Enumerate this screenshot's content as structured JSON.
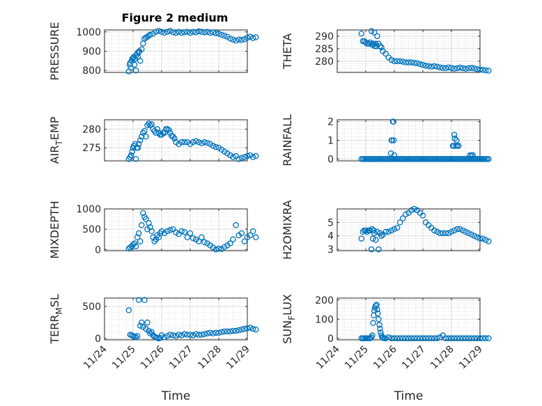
{
  "figure": {
    "title": "Figure 2 medium",
    "marker_color": "#0072BD",
    "axis_color": "#262626",
    "grid_color": "#dcdcdc",
    "date_ticks": [
      "11/24",
      "11/25",
      "11/26",
      "11/27",
      "11/28",
      "11/29"
    ],
    "xlabel": "Time"
  },
  "chart_data": [
    {
      "type": "scatter",
      "ylabel": "PRESSURE",
      "ylim": [
        790,
        1010
      ],
      "yticks": [
        800,
        900,
        1000
      ],
      "grid": true,
      "x": [
        0.85,
        0.88,
        0.9,
        0.92,
        0.95,
        0.97,
        1.0,
        1.02,
        1.05,
        1.07,
        1.1,
        1.12,
        1.15,
        1.17,
        1.2,
        1.22,
        1.25,
        1.3,
        1.35,
        1.4,
        1.45,
        1.5,
        1.55,
        1.6,
        1.7,
        1.8,
        1.9,
        2.0,
        2.1,
        2.2,
        2.3,
        2.4,
        2.5,
        2.6,
        2.7,
        2.8,
        2.9,
        3.0,
        3.1,
        3.2,
        3.3,
        3.4,
        3.5,
        3.6,
        3.7,
        3.8,
        3.9,
        4.0,
        4.1,
        4.2,
        4.3,
        4.4,
        4.5,
        4.6,
        4.7,
        4.8,
        4.9,
        5.0,
        5.1,
        5.2,
        5.3
      ],
      "y": [
        795,
        830,
        840,
        815,
        850,
        860,
        865,
        870,
        830,
        860,
        800,
        880,
        890,
        870,
        895,
        900,
        850,
        910,
        940,
        965,
        970,
        975,
        980,
        985,
        990,
        1000,
        1005,
        1000,
        995,
        1000,
        1005,
        998,
        995,
        1000,
        995,
        998,
        1000,
        995,
        1000,
        998,
        1003,
        1000,
        998,
        1000,
        995,
        998,
        993,
        990,
        985,
        980,
        975,
        965,
        960,
        955,
        960,
        958,
        962,
        970,
        975,
        968,
        972
      ]
    },
    {
      "type": "scatter",
      "ylabel": "THETA",
      "ylim": [
        275.5,
        292.5
      ],
      "yticks": [
        280,
        285,
        290
      ],
      "grid": true,
      "x": [
        0.85,
        0.9,
        0.95,
        1.0,
        1.05,
        1.1,
        1.15,
        1.2,
        1.22,
        1.25,
        1.28,
        1.3,
        1.32,
        1.35,
        1.38,
        1.4,
        1.45,
        1.5,
        1.55,
        1.6,
        1.7,
        1.8,
        1.9,
        2.0,
        2.1,
        2.2,
        2.3,
        2.4,
        2.5,
        2.6,
        2.7,
        2.8,
        2.9,
        3.0,
        3.1,
        3.2,
        3.3,
        3.4,
        3.5,
        3.6,
        3.7,
        3.8,
        3.9,
        4.0,
        4.1,
        4.2,
        4.3,
        4.4,
        4.5,
        4.6,
        4.7,
        4.8,
        4.9,
        5.0,
        5.1,
        5.2,
        5.3
      ],
      "y": [
        291,
        288,
        288,
        287.5,
        287,
        287,
        287.5,
        292,
        286.5,
        287,
        287,
        291.5,
        286,
        287,
        286,
        290,
        287,
        286,
        285.5,
        284,
        283,
        281.5,
        280.5,
        280,
        280,
        280,
        279.8,
        279.5,
        279.5,
        279.5,
        279.3,
        279.2,
        278.8,
        278.5,
        278.2,
        278,
        277.8,
        278,
        277.8,
        277.5,
        277.3,
        277.2,
        277.5,
        277.3,
        277,
        277.2,
        277.4,
        277.2,
        277,
        277.2,
        277.3,
        277.1,
        276.8,
        276.6,
        276.5,
        276.3,
        276.2
      ]
    },
    {
      "type": "scatter",
      "ylabel": "AIR_TEMP",
      "ylim": [
        271.5,
        282.5
      ],
      "yticks": [
        275,
        280
      ],
      "grid": true,
      "x": [
        0.85,
        0.9,
        0.93,
        0.97,
        1.0,
        1.03,
        1.07,
        1.1,
        1.13,
        1.17,
        1.2,
        1.25,
        1.3,
        1.35,
        1.4,
        1.45,
        1.5,
        1.55,
        1.6,
        1.65,
        1.7,
        1.75,
        1.8,
        1.85,
        1.9,
        1.95,
        2.0,
        2.05,
        2.1,
        2.15,
        2.2,
        2.25,
        2.3,
        2.35,
        2.4,
        2.45,
        2.5,
        2.6,
        2.7,
        2.8,
        2.9,
        3.0,
        3.1,
        3.2,
        3.3,
        3.4,
        3.5,
        3.6,
        3.7,
        3.8,
        3.9,
        4.0,
        4.1,
        4.2,
        4.3,
        4.4,
        4.5,
        4.6,
        4.7,
        4.8,
        4.9,
        5.0,
        5.1,
        5.2,
        5.3
      ],
      "y": [
        272,
        272.5,
        273,
        274,
        275,
        275.5,
        276,
        272,
        275,
        275,
        276,
        277,
        278,
        279,
        279.5,
        278,
        281,
        281.5,
        281,
        281.3,
        280,
        279.5,
        279,
        280,
        279,
        278.5,
        278.5,
        279,
        279,
        280,
        280,
        279.8,
        279,
        278.2,
        278,
        277.5,
        276.5,
        276,
        276.5,
        276.5,
        276.5,
        276,
        276.5,
        276.8,
        276.5,
        276.2,
        276.5,
        276.3,
        276,
        275.5,
        275.2,
        275,
        274.5,
        274,
        273.5,
        273,
        272.5,
        272.8,
        272,
        272.3,
        272.5,
        272.8,
        273,
        272.5,
        272.8
      ]
    },
    {
      "type": "scatter",
      "ylabel": "RAINFALL",
      "ylim": [
        -0.1,
        2.1
      ],
      "yticks": [
        0,
        1,
        2
      ],
      "grid": true,
      "x": [
        0.85,
        0.9,
        0.95,
        1.0,
        1.05,
        1.1,
        1.15,
        1.2,
        1.25,
        1.3,
        1.35,
        1.4,
        1.45,
        1.5,
        1.55,
        1.6,
        1.65,
        1.7,
        1.75,
        1.8,
        1.85,
        1.9,
        1.95,
        2.0,
        2.05,
        2.1,
        2.15,
        2.2,
        2.25,
        2.3,
        2.35,
        2.4,
        2.45,
        2.5,
        2.55,
        2.6,
        2.65,
        2.7,
        2.75,
        2.8,
        2.85,
        2.9,
        2.95,
        3.0,
        3.05,
        3.1,
        3.15,
        3.2,
        3.25,
        3.3,
        3.35,
        3.4,
        3.45,
        3.5,
        3.55,
        3.6,
        3.65,
        3.7,
        3.75,
        3.8,
        3.85,
        3.9,
        3.95,
        4.0,
        4.05,
        4.1,
        4.15,
        4.2,
        4.25,
        4.3,
        4.35,
        4.4,
        4.45,
        4.5,
        4.55,
        4.6,
        4.65,
        4.7,
        4.75,
        4.8,
        4.85,
        4.9,
        4.95,
        5.0,
        5.05,
        5.1,
        5.15,
        5.2,
        5.25,
        5.3,
        1.88,
        1.9,
        1.92,
        1.95,
        1.97,
        1.98,
        2.0,
        4.05,
        4.08,
        4.1,
        4.12,
        4.15,
        4.18,
        4.2,
        4.25,
        4.65,
        4.7,
        4.75
      ],
      "y": [
        0,
        0,
        0,
        0,
        0,
        0,
        0,
        0,
        0,
        0,
        0,
        0,
        0,
        0,
        0,
        0,
        0,
        0,
        0,
        0,
        0,
        0,
        0,
        0,
        0,
        0,
        0,
        0,
        0,
        0,
        0,
        0,
        0,
        0,
        0,
        0,
        0,
        0,
        0,
        0,
        0,
        0,
        0,
        0,
        0,
        0,
        0,
        0,
        0,
        0,
        0,
        0,
        0,
        0,
        0,
        0,
        0,
        0,
        0,
        0,
        0,
        0,
        0,
        0,
        0,
        0,
        0,
        0,
        0,
        0,
        0,
        0,
        0,
        0,
        0,
        0,
        0,
        0,
        0,
        0,
        0,
        0,
        0,
        0,
        0,
        0,
        0,
        0,
        0,
        0,
        0.3,
        1.0,
        1.0,
        2.0,
        2.0,
        1.0,
        0.2,
        0.7,
        0.7,
        1.3,
        1.1,
        0.7,
        1.0,
        0.7,
        0.7,
        0.2,
        0.2,
        0.2
      ]
    },
    {
      "type": "scatter",
      "ylabel": "MIXDEPTH",
      "ylim": [
        -30,
        1000
      ],
      "yticks": [
        0,
        500,
        1000
      ],
      "grid": true,
      "x": [
        0.85,
        0.9,
        0.95,
        1.0,
        1.05,
        1.1,
        1.15,
        1.2,
        1.25,
        1.3,
        1.35,
        1.4,
        1.45,
        1.5,
        1.55,
        1.6,
        1.65,
        1.7,
        1.75,
        1.8,
        1.85,
        1.9,
        1.95,
        2.0,
        2.1,
        2.2,
        2.3,
        2.4,
        2.5,
        2.6,
        2.7,
        2.8,
        2.9,
        3.0,
        3.1,
        3.2,
        3.3,
        3.4,
        3.5,
        3.6,
        3.7,
        3.8,
        3.9,
        4.0,
        4.1,
        4.2,
        4.3,
        4.4,
        4.5,
        4.6,
        4.7,
        4.8,
        4.9,
        5.0,
        5.1,
        5.2,
        5.3
      ],
      "y": [
        20,
        50,
        80,
        120,
        150,
        80,
        300,
        400,
        200,
        600,
        900,
        800,
        750,
        500,
        650,
        550,
        450,
        300,
        200,
        250,
        350,
        300,
        400,
        450,
        400,
        450,
        480,
        500,
        420,
        380,
        450,
        430,
        300,
        400,
        280,
        250,
        200,
        300,
        180,
        150,
        100,
        50,
        0,
        20,
        10,
        60,
        100,
        150,
        250,
        600,
        350,
        400,
        200,
        300,
        350,
        450,
        300
      ]
    },
    {
      "type": "scatter",
      "ylabel": "H2OMIXRA",
      "ylim": [
        2.9,
        6.0
      ],
      "yticks": [
        3,
        4,
        5
      ],
      "grid": true,
      "x": [
        0.85,
        0.9,
        0.95,
        1.0,
        1.05,
        1.1,
        1.15,
        1.2,
        1.22,
        1.25,
        1.28,
        1.3,
        1.35,
        1.4,
        1.45,
        1.5,
        1.55,
        1.6,
        1.7,
        1.8,
        1.9,
        2.0,
        2.1,
        2.2,
        2.3,
        2.4,
        2.5,
        2.6,
        2.7,
        2.8,
        2.9,
        3.0,
        3.1,
        3.2,
        3.3,
        3.4,
        3.5,
        3.6,
        3.7,
        3.8,
        3.9,
        4.0,
        4.1,
        4.2,
        4.3,
        4.4,
        4.5,
        4.6,
        4.7,
        4.8,
        4.9,
        5.0,
        5.1,
        5.2,
        5.3
      ],
      "y": [
        3.8,
        4.3,
        4.4,
        4.4,
        4.3,
        4.4,
        4.4,
        3.0,
        4.5,
        3.8,
        4.4,
        4.2,
        3.7,
        4.3,
        3.0,
        4.2,
        4.0,
        4.1,
        4.3,
        4.3,
        4.4,
        4.5,
        4.6,
        5.0,
        5.3,
        5.6,
        5.7,
        5.9,
        6.0,
        5.9,
        5.7,
        5.5,
        5.0,
        4.8,
        4.6,
        4.4,
        4.3,
        4.2,
        4.2,
        4.2,
        4.2,
        4.3,
        4.4,
        4.5,
        4.5,
        4.4,
        4.3,
        4.2,
        4.1,
        4.0,
        3.9,
        3.8,
        3.8,
        3.7,
        3.6
      ]
    },
    {
      "type": "scatter",
      "ylabel": "TERR_MSL",
      "ylim": [
        -20,
        630
      ],
      "yticks": [
        0,
        500
      ],
      "grid": true,
      "x": [
        0.85,
        0.9,
        0.95,
        1.0,
        1.05,
        1.1,
        1.15,
        1.2,
        1.25,
        1.3,
        1.35,
        1.4,
        1.45,
        1.5,
        1.55,
        1.6,
        1.65,
        1.7,
        1.75,
        1.8,
        1.85,
        1.9,
        1.95,
        2.0,
        2.1,
        2.2,
        2.3,
        2.4,
        2.5,
        2.6,
        2.7,
        2.8,
        2.9,
        3.0,
        3.1,
        3.2,
        3.3,
        3.4,
        3.5,
        3.6,
        3.7,
        3.8,
        3.9,
        4.0,
        4.1,
        4.2,
        4.3,
        4.4,
        4.5,
        4.6,
        4.7,
        4.8,
        4.9,
        5.0,
        5.1,
        5.2,
        5.3
      ],
      "y": [
        440,
        60,
        50,
        40,
        30,
        20,
        40,
        600,
        200,
        250,
        180,
        600,
        150,
        250,
        120,
        80,
        100,
        50,
        30,
        20,
        10,
        0,
        10,
        50,
        20,
        40,
        60,
        50,
        40,
        60,
        50,
        70,
        60,
        60,
        50,
        70,
        60,
        60,
        70,
        80,
        90,
        80,
        90,
        90,
        100,
        110,
        110,
        110,
        120,
        120,
        130,
        140,
        150,
        160,
        170,
        150,
        140
      ]
    },
    {
      "type": "scatter",
      "ylabel": "SUN_FLUX",
      "ylim": [
        -8,
        210
      ],
      "yticks": [
        0,
        100,
        200
      ],
      "grid": true,
      "x": [
        0.85,
        0.9,
        0.95,
        1.0,
        1.05,
        1.1,
        1.15,
        1.2,
        1.23,
        1.26,
        1.28,
        1.3,
        1.32,
        1.35,
        1.38,
        1.4,
        1.42,
        1.45,
        1.48,
        1.5,
        1.52,
        1.55,
        1.58,
        1.6,
        1.65,
        1.7,
        1.8,
        1.9,
        2.0,
        2.1,
        2.2,
        2.3,
        2.4,
        2.5,
        2.6,
        2.7,
        2.8,
        2.9,
        3.0,
        3.1,
        3.2,
        3.3,
        3.4,
        3.5,
        3.6,
        3.7,
        3.8,
        3.9,
        4.0,
        4.1,
        4.2,
        4.3,
        4.4,
        4.5,
        4.6,
        4.7,
        4.8,
        4.9,
        5.0,
        5.1,
        5.2,
        5.3
      ],
      "y": [
        0,
        0,
        0,
        0,
        0,
        0,
        0,
        5,
        15,
        80,
        120,
        145,
        160,
        170,
        175,
        150,
        130,
        100,
        70,
        50,
        30,
        15,
        5,
        2,
        0,
        0,
        5,
        0,
        0,
        0,
        0,
        0,
        0,
        0,
        0,
        0,
        0,
        0,
        0,
        0,
        0,
        0,
        0,
        0,
        5,
        15,
        0,
        0,
        0,
        0,
        0,
        0,
        0,
        0,
        0,
        0,
        0,
        0,
        0,
        0,
        0,
        0
      ]
    }
  ]
}
